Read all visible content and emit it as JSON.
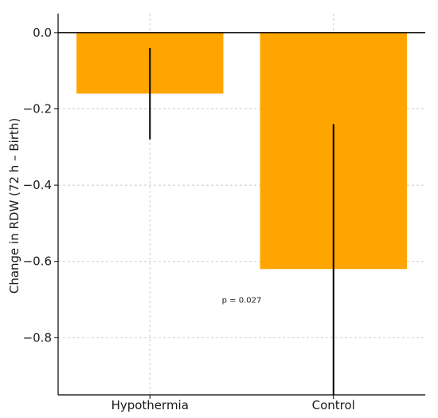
{
  "chart_data": {
    "type": "bar",
    "categories": [
      "Hypothermia",
      "Control"
    ],
    "values": [
      -0.16,
      -0.62
    ],
    "error_bars": [
      {
        "low": -0.28,
        "high": -0.04
      },
      {
        "low": -0.95,
        "high": -0.24
      }
    ],
    "title": "",
    "xlabel": "",
    "ylabel": "Change in RDW (72 h – Birth)",
    "ylim": [
      -0.95,
      0.05
    ],
    "yticks": [
      0.0,
      -0.2,
      -0.4,
      -0.6,
      -0.8
    ],
    "ytick_labels": [
      "0.0",
      "−0.2",
      "−0.4",
      "−0.6",
      "−0.8"
    ],
    "grid": true,
    "annotations": [
      {
        "text": "p = 0.027",
        "x": 0.5,
        "y": -0.7
      }
    ],
    "colors": {
      "bar": "#FFA500",
      "error_bar": "#000000",
      "grid": "#cccccc",
      "axis": "#000000"
    }
  }
}
